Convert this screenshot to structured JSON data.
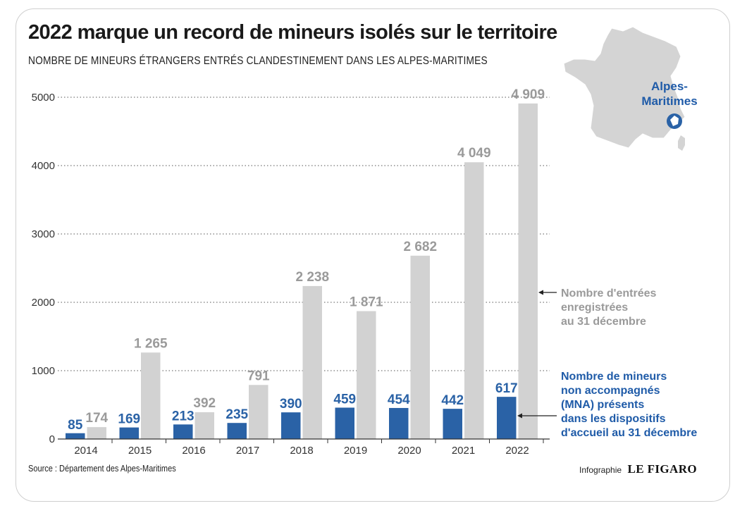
{
  "header": {
    "title": "2022 marque un record de mineurs isolés sur le territoire",
    "subtitle": "NOMBRE DE MINEURS ÉTRANGERS ENTRÉS CLANDESTINEMENT DANS LES ALPES-MARITIMES"
  },
  "map": {
    "label_line1": "Alpes-",
    "label_line2": "Maritimes",
    "icon": "france-map-icon"
  },
  "annotations": {
    "gray": [
      "Nombre d'entrées",
      "enregistrées",
      "au 31 décembre"
    ],
    "blue": [
      "Nombre de mineurs",
      "non accompagnés",
      "(MNA) présents",
      "dans les dispositifs",
      "d'accueil au 31 décembre"
    ]
  },
  "footer": {
    "source": "Source : Département des Alpes-Maritimes",
    "credit_prefix": "Infographie",
    "credit_brand": "LE FIGARO"
  },
  "colors": {
    "blue": "#2a62a6",
    "gray": "#d2d2d2",
    "gray_label": "#9a9a9a",
    "text": "#1a1a1a"
  },
  "chart_data": {
    "type": "bar",
    "categories": [
      "2014",
      "2015",
      "2016",
      "2017",
      "2018",
      "2019",
      "2020",
      "2021",
      "2022"
    ],
    "series": [
      {
        "values": [
          85,
          169,
          213,
          235,
          390,
          459,
          454,
          442,
          617
        ],
        "labels": [
          "85",
          "169",
          "213",
          "235",
          "390",
          "459",
          "454",
          "442",
          "617"
        ]
      },
      {
        "values": [
          174,
          1265,
          392,
          791,
          2238,
          1871,
          2682,
          4049,
          4909
        ],
        "labels": [
          "174",
          "1 265",
          "392",
          "791",
          "2 238",
          "1 871",
          "2 682",
          "4 049",
          "4 909"
        ]
      }
    ],
    "yticks": [
      0,
      1000,
      2000,
      3000,
      4000,
      5000
    ],
    "ytick_labels": [
      "0",
      "1000",
      "2000",
      "3000",
      "4000",
      "5000"
    ],
    "ylim": [
      0,
      5000
    ],
    "grid": true
  }
}
